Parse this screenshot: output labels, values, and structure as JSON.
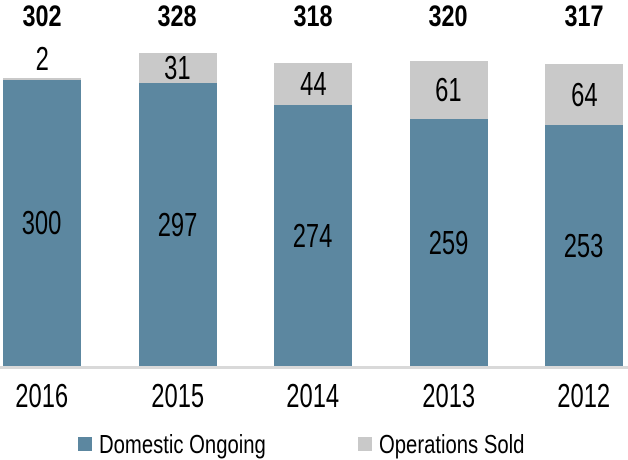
{
  "chart_data": {
    "type": "bar",
    "stacked": true,
    "title": "",
    "xlabel": "",
    "ylabel": "",
    "categories": [
      "2016",
      "2015",
      "2014",
      "2013",
      "2012"
    ],
    "series": [
      {
        "name": "Domestic Ongoing",
        "color": "#5C87A0",
        "values": [
          300,
          297,
          274,
          259,
          253
        ]
      },
      {
        "name": "Operations Sold",
        "color": "#C9C9C9",
        "values": [
          2,
          31,
          44,
          61,
          64
        ]
      }
    ],
    "totals": [
      302,
      328,
      318,
      320,
      317
    ],
    "ylim": [
      0,
      328
    ],
    "grid": false,
    "axes_visible": false,
    "axis_line_color": "#D9D9D9",
    "label_color": "#000000",
    "legend_position": "bottom"
  }
}
